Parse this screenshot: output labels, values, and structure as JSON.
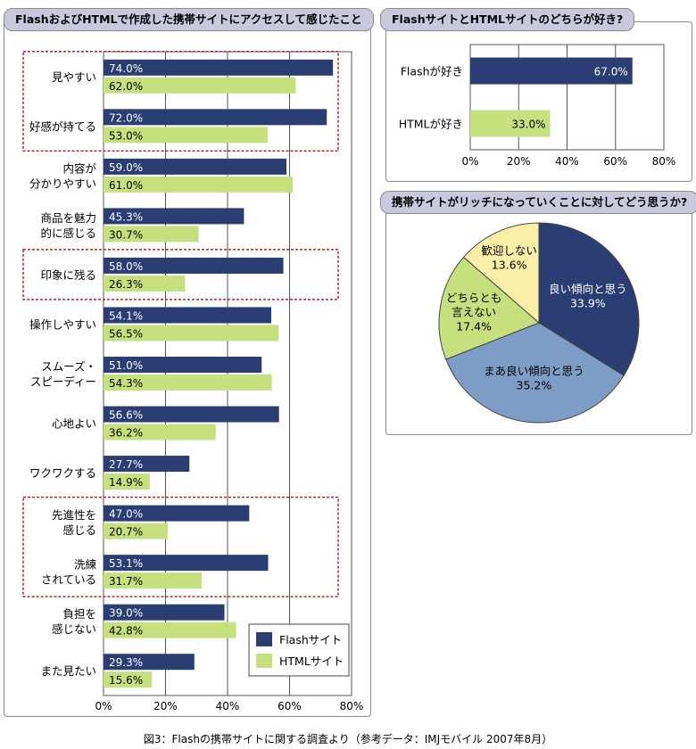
{
  "colors": {
    "flash": "#2b3e74",
    "html": "#c6e07e",
    "highlight": "#b3242f",
    "title_bg": "#c9c9de"
  },
  "left_panel": {
    "title": "FlashおよびHTMLで作成した携帯サイトにアクセスして感じたこと"
  },
  "top_right_panel": {
    "title": "FlashサイトとHTMLサイトのどちらが好き?"
  },
  "bottom_right_panel": {
    "title": "携帯サイトがリッチになっていくことに対してどう思うか?"
  },
  "caption": "図3：Flashの携帯サイトに関する調査より（参考データ：IMJモバイル 2007年8月）",
  "chart_data": [
    {
      "type": "bar",
      "orientation": "horizontal",
      "categories": [
        [
          "見やすい"
        ],
        [
          "好感が持てる"
        ],
        [
          "内容が",
          "分かりやすい"
        ],
        [
          "商品を魅力",
          "的に感じる"
        ],
        [
          "印象に残る"
        ],
        [
          "操作しやすい"
        ],
        [
          "スムーズ・",
          "スピーディー"
        ],
        [
          "心地よい"
        ],
        [
          "ワクワクする"
        ],
        [
          "先進性を",
          "感じる"
        ],
        [
          "洗練",
          "されている"
        ],
        [
          "負担を",
          "感じない"
        ],
        [
          "また見たい"
        ]
      ],
      "series": [
        {
          "name": "Flashサイト",
          "values": [
            74.0,
            72.0,
            59.0,
            45.3,
            58.0,
            54.1,
            51.0,
            56.6,
            27.7,
            47.0,
            53.1,
            39.0,
            29.3
          ],
          "labels": [
            "74.0%",
            "72.0%",
            "59.0%",
            "45.3%",
            "58.0%",
            "54.1%",
            "51.0%",
            "56.6%",
            "27.7%",
            "47.0%",
            "53.1%",
            "39.0%",
            "29.3%"
          ]
        },
        {
          "name": "HTMLサイト",
          "values": [
            62.0,
            53.0,
            61.0,
            30.7,
            26.3,
            56.5,
            54.3,
            36.2,
            14.9,
            20.7,
            31.7,
            42.8,
            15.6
          ],
          "labels": [
            "62.0%",
            "53.0%",
            "61.0%",
            "30.7%",
            "26.3%",
            "56.5%",
            "54.3%",
            "36.2%",
            "14.9%",
            "20.7%",
            "31.7%",
            "42.8%",
            "15.6%"
          ]
        }
      ],
      "highlight_groups": [
        [
          0,
          1
        ],
        [
          4,
          4
        ],
        [
          9,
          10
        ]
      ],
      "xlim": [
        0,
        80
      ],
      "ticks": [
        0,
        20,
        40,
        60,
        80
      ],
      "tick_labels": [
        "0%",
        "20%",
        "40%",
        "60%",
        "80%"
      ],
      "grid": true,
      "legend": [
        "Flashサイト",
        "HTMLサイト"
      ],
      "legend_position": "bottom-right"
    },
    {
      "type": "bar",
      "orientation": "horizontal",
      "categories": [
        "Flashが好き",
        "HTMLが好き"
      ],
      "values": [
        67.0,
        33.0
      ],
      "labels": [
        "67.0%",
        "33.0%"
      ],
      "series_colors": [
        "#2b3e74",
        "#c6e07e"
      ],
      "xlim": [
        0,
        80
      ],
      "ticks": [
        0,
        20,
        40,
        60,
        80
      ],
      "tick_labels": [
        "0%",
        "20%",
        "40%",
        "60%",
        "80%"
      ],
      "grid": true
    },
    {
      "type": "pie",
      "slices": [
        {
          "label": [
            "良い傾向と思う"
          ],
          "value": 33.9,
          "value_label": "33.9%",
          "color": "#2b3e74",
          "text_color": "#ffffff"
        },
        {
          "label": [
            "まあ良い傾向と思う"
          ],
          "value": 35.2,
          "value_label": "35.2%",
          "color": "#7d9cc6",
          "text_color": "#000000"
        },
        {
          "label": [
            "どちらとも",
            "言えない"
          ],
          "value": 17.4,
          "value_label": "17.4%",
          "color": "#c6e07e",
          "text_color": "#000000"
        },
        {
          "label": [
            "歓迎しない"
          ],
          "value": 13.6,
          "value_label": "13.6%",
          "color": "#fbefa8",
          "text_color": "#000000"
        }
      ],
      "start": "12 o'clock",
      "direction": "clockwise"
    }
  ]
}
